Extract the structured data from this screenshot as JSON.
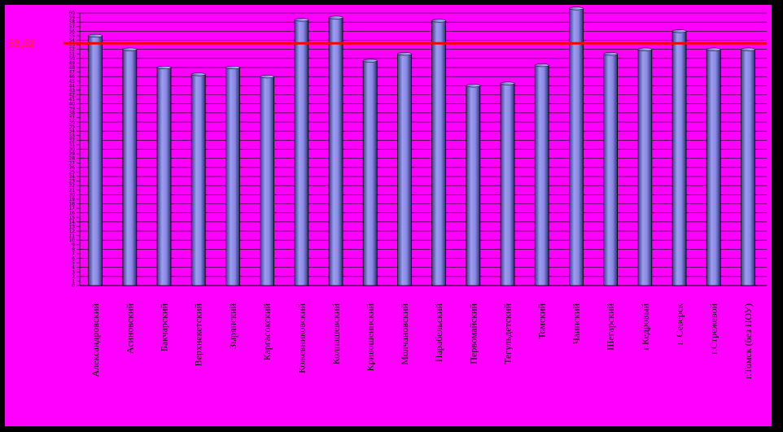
{
  "chart_data": {
    "type": "bar",
    "title": "",
    "xlabel": "",
    "ylabel": "",
    "ylim": [
      0,
      60
    ],
    "ytick_step": 1,
    "grid": true,
    "categories": [
      "Александровский",
      "Асиновский",
      "Бакчарский",
      "Верхнекетский",
      "Зырянский",
      "Каргасокский",
      "Кожевниковский",
      "Колпашевский",
      "Кривошеинский",
      "Молчановский",
      "Парабельский",
      "Первомайский",
      "Тегульдетский",
      "Томский",
      "Чаинский",
      "Шегарский",
      "г.Кедровый",
      "г. Северск",
      "г.Стрежевой",
      "г.Томск (без НОУ)"
    ],
    "values": [
      55,
      52,
      48,
      46.5,
      48,
      46,
      58.5,
      59,
      49.5,
      51,
      58.3,
      44,
      44.5,
      48.5,
      61,
      51,
      52,
      56,
      52,
      52
    ],
    "reference_line": {
      "value": 53.32,
      "label": "53,32",
      "color": "#ff0000"
    },
    "colors": {
      "background": "#ff00ff",
      "bar": "#7b7bd8",
      "frame": "#000000",
      "grid": "#000000"
    }
  }
}
